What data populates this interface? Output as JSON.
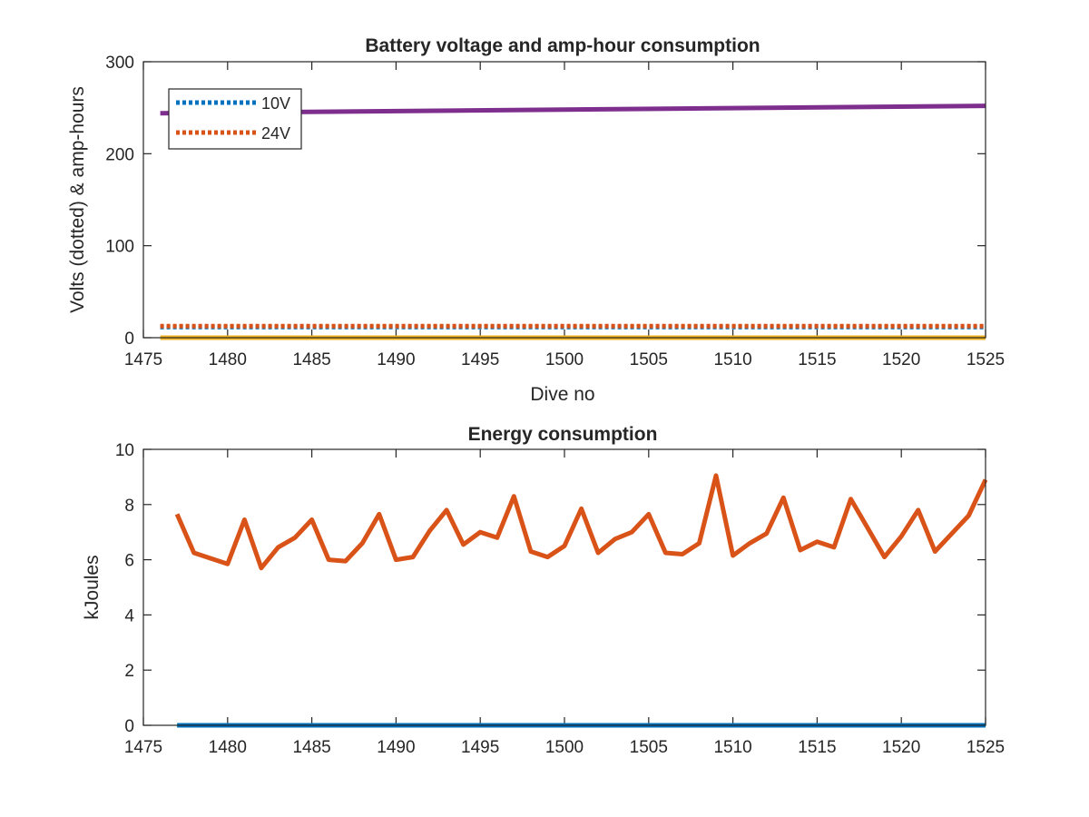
{
  "chart_data": [
    {
      "type": "line",
      "title": "Battery voltage and amp-hour consumption",
      "xlabel": "Dive no",
      "ylabel": "Volts (dotted) & amp-hours",
      "xlim": [
        1475,
        1525
      ],
      "ylim": [
        0,
        300
      ],
      "xticks": [
        1475,
        1480,
        1485,
        1490,
        1495,
        1500,
        1505,
        1510,
        1515,
        1520,
        1525
      ],
      "yticks": [
        0,
        100,
        200,
        300
      ],
      "grid": false,
      "legend": {
        "placement": "top-left",
        "entries": [
          "10V",
          "24V"
        ]
      },
      "series": [
        {
          "name": "10V",
          "style": "dotted",
          "color": "#0072BD",
          "x": [
            1476,
            1525
          ],
          "y": [
            11.5,
            11.5
          ]
        },
        {
          "name": "24V",
          "style": "dotted",
          "color": "#D95319",
          "x": [
            1476,
            1525
          ],
          "y": [
            12.5,
            12.5
          ]
        },
        {
          "style": "solid",
          "color": "#EDB120",
          "x": [
            1476,
            1525
          ],
          "y": [
            0,
            0
          ]
        },
        {
          "style": "solid",
          "color": "#7E2F8E",
          "x": [
            1476,
            1525
          ],
          "y": [
            244,
            252
          ]
        }
      ]
    },
    {
      "type": "line",
      "title": "Energy consumption",
      "xlabel": "",
      "ylabel": "kJoules",
      "xlim": [
        1475,
        1525
      ],
      "ylim": [
        0,
        10
      ],
      "xticks": [
        1475,
        1480,
        1485,
        1490,
        1495,
        1500,
        1505,
        1510,
        1515,
        1520,
        1525
      ],
      "yticks": [
        0,
        2,
        4,
        6,
        8,
        10
      ],
      "grid": false,
      "series": [
        {
          "style": "solid",
          "color": "#0072BD",
          "x": [
            1477,
            1525
          ],
          "y": [
            0,
            0
          ]
        },
        {
          "style": "solid",
          "color": "#D95319",
          "x": [
            1477,
            1478,
            1479,
            1480,
            1481,
            1482,
            1483,
            1484,
            1485,
            1486,
            1487,
            1488,
            1489,
            1490,
            1491,
            1492,
            1493,
            1494,
            1495,
            1496,
            1497,
            1498,
            1499,
            1500,
            1501,
            1502,
            1503,
            1504,
            1505,
            1506,
            1507,
            1508,
            1509,
            1510,
            1511,
            1512,
            1513,
            1514,
            1515,
            1516,
            1517,
            1518,
            1519,
            1520,
            1521,
            1522,
            1523,
            1524,
            1525
          ],
          "y": [
            7.65,
            6.25,
            6.05,
            5.85,
            7.45,
            5.7,
            6.45,
            6.8,
            7.45,
            6.0,
            5.95,
            6.6,
            7.65,
            6.0,
            6.1,
            7.05,
            7.8,
            6.55,
            7.0,
            6.8,
            8.3,
            6.3,
            6.1,
            6.5,
            7.85,
            6.25,
            6.75,
            7.0,
            7.65,
            6.25,
            6.2,
            6.6,
            9.05,
            6.15,
            6.6,
            6.95,
            8.25,
            6.35,
            6.65,
            6.45,
            8.2,
            7.15,
            6.1,
            6.85,
            7.8,
            6.3,
            6.95,
            7.6,
            8.9
          ]
        }
      ]
    }
  ]
}
